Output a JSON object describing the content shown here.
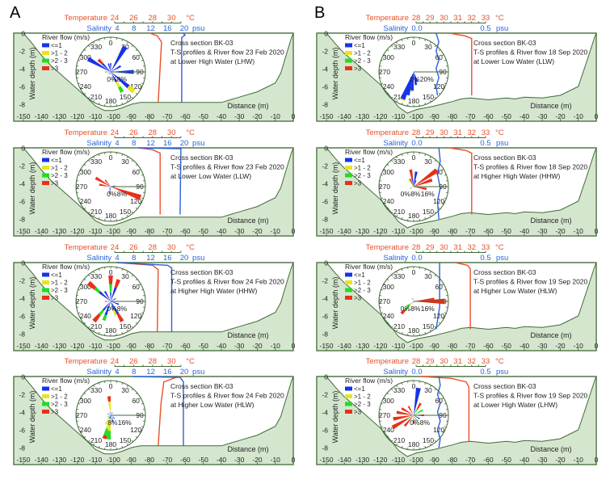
{
  "panel_labels": [
    "A",
    "B"
  ],
  "common": {
    "xlabel": "Distance (m)",
    "ylabel": "Water depth (m)",
    "xticks": [
      "-150",
      "-140",
      "-130",
      "-120",
      "-110",
      "-100",
      "-90",
      "-80",
      "-70",
      "-60",
      "-50",
      "-40",
      "-30",
      "-20",
      "-10",
      "0"
    ],
    "yticks": [
      "0",
      "-2",
      "-4",
      "-6",
      "-8"
    ],
    "temperature_label": "Temperature",
    "temperature_unit": "°C",
    "salinity_label": "Salinity",
    "salinity_unit": "psu",
    "legend": {
      "title": "River flow (m/s)",
      "entries": [
        "<=1",
        ">1 - 2",
        ">2 - 3",
        ">3"
      ]
    },
    "rose_directions": [
      "0",
      "30",
      "60",
      "90",
      "120",
      "150",
      "180",
      "210",
      "240",
      "270",
      "300",
      "330"
    ]
  },
  "colors": {
    "frame": "#3f6b35",
    "seabed_fill": "#d5e6cf",
    "temperature": "#e8502a",
    "salinity": "#2b62d9",
    "flow_classes": [
      "#1733e8",
      "#e6e61e",
      "#22dd22",
      "#e8301a"
    ]
  },
  "chart_data": [
    {
      "type": "profile+windrose",
      "column": "A",
      "title": [
        "Cross section BK-03",
        "T-S profiles & River flow 23 Feb 2020",
        "at Lower High Water (LHW)"
      ],
      "temperature_ticks": [
        "24",
        "26",
        "28",
        "30"
      ],
      "temperature_range": [
        24,
        31
      ],
      "salinity_ticks": [
        "4",
        "8",
        "12",
        "16",
        "20"
      ],
      "temperature_profile": [
        [
          0,
          27.7
        ],
        [
          -0.3,
          28.5
        ],
        [
          -1,
          28.95
        ],
        [
          -7.8,
          28.6
        ]
      ],
      "salinity_profile": [
        [
          0,
          19.7
        ],
        [
          -0.2,
          20.2
        ],
        [
          -0.5,
          19.4
        ],
        [
          -7.8,
          19.4
        ]
      ],
      "rose_max_pct": 12,
      "rose_pct_labels": [
        {
          "pct": 0,
          "label": "0%"
        },
        {
          "pct": 8,
          "label": "8%"
        }
      ],
      "petals": [
        [
          30,
          10,
          0,
          0,
          0
        ],
        [
          300,
          9,
          0,
          0,
          0
        ],
        [
          315,
          4,
          0,
          0,
          2
        ],
        [
          90,
          8,
          0,
          0,
          0
        ],
        [
          60,
          4,
          0,
          0,
          0
        ],
        [
          130,
          8,
          2.5,
          0,
          0
        ],
        [
          150,
          4,
          2,
          2,
          0
        ],
        [
          0,
          3,
          0,
          0,
          0
        ],
        [
          345,
          3,
          0,
          0,
          0
        ],
        [
          270,
          1,
          0,
          1,
          0
        ],
        [
          230,
          1,
          0,
          0,
          0
        ],
        [
          200,
          1,
          0,
          0,
          0
        ]
      ]
    },
    {
      "type": "profile+windrose",
      "column": "A",
      "title": [
        "Cross section BK-03",
        "T-S profiles & River flow 23 Feb 2020",
        "at Lower Low Water (LLW)"
      ],
      "temperature_ticks": [
        "24",
        "26",
        "28",
        "30"
      ],
      "temperature_range": [
        24,
        31
      ],
      "salinity_ticks": [
        "4",
        "8",
        "12",
        "16",
        "20"
      ],
      "temperature_profile": [
        [
          0,
          26.5
        ],
        [
          -0.2,
          28
        ],
        [
          -0.6,
          28.8
        ],
        [
          -7.5,
          28.8
        ]
      ],
      "salinity_profile": [
        [
          0,
          9
        ],
        [
          -0.1,
          19.2
        ],
        [
          -7.5,
          19.0
        ]
      ],
      "rose_max_pct": 12,
      "rose_pct_labels": [
        {
          "pct": 0,
          "label": "0%"
        },
        {
          "pct": 8,
          "label": "8%"
        }
      ],
      "petals": [
        [
          110,
          1,
          0,
          0,
          10
        ],
        [
          300,
          1,
          0,
          0,
          5
        ],
        [
          320,
          0,
          0,
          0,
          3
        ],
        [
          280,
          1,
          0,
          0,
          3
        ],
        [
          80,
          1.5,
          0,
          0,
          0
        ],
        [
          190,
          2.5,
          0,
          0,
          0
        ],
        [
          210,
          1,
          0,
          0,
          0
        ],
        [
          240,
          0,
          1,
          0,
          0
        ]
      ]
    },
    {
      "type": "profile+windrose",
      "column": "A",
      "title": [
        "Cross section BK-03",
        "T-S profiles & River flow 24 Feb 2020",
        "at Higher High Water (HHW)"
      ],
      "temperature_ticks": [
        "24",
        "26",
        "28",
        "30"
      ],
      "temperature_range": [
        24,
        31
      ],
      "salinity_ticks": [
        "4",
        "8",
        "12",
        "16",
        "20"
      ],
      "temperature_profile": [
        [
          0,
          24.3
        ],
        [
          -0.3,
          28.0
        ],
        [
          -0.8,
          28.6
        ],
        [
          -7.8,
          28.5
        ]
      ],
      "salinity_profile": [
        [
          0,
          4
        ],
        [
          -0.3,
          16
        ],
        [
          -0.6,
          17
        ],
        [
          -7.8,
          17
        ]
      ],
      "rose_max_pct": 12,
      "rose_pct_labels": [
        {
          "pct": 0,
          "label": "0%"
        },
        {
          "pct": 8,
          "label": "8%"
        }
      ],
      "petals": [
        [
          0,
          3,
          0,
          3,
          3
        ],
        [
          20,
          5,
          0,
          0,
          3
        ],
        [
          310,
          5,
          0,
          2,
          3
        ],
        [
          330,
          4,
          0,
          0,
          0
        ],
        [
          220,
          4,
          0,
          2,
          3
        ],
        [
          200,
          5,
          0,
          2,
          0
        ],
        [
          150,
          5,
          0,
          0,
          3
        ],
        [
          160,
          3,
          2,
          0,
          0
        ],
        [
          110,
          3,
          0,
          0,
          0
        ],
        [
          270,
          1,
          0,
          0,
          1
        ],
        [
          60,
          2,
          0,
          0,
          0
        ]
      ]
    },
    {
      "type": "profile+windrose",
      "column": "A",
      "title": [
        "Cross section BK-03",
        "T-S profiles & River flow 24 Feb 2020",
        "at Higher Low Water (HLW)"
      ],
      "temperature_ticks": [
        "24",
        "26",
        "28",
        "30"
      ],
      "temperature_range": [
        24,
        31
      ],
      "salinity_ticks": [
        "4",
        "8",
        "12",
        "16",
        "20"
      ],
      "temperature_profile": [
        [
          -7.8,
          28.6
        ],
        [
          -3,
          28.9
        ],
        [
          -0.6,
          29.2
        ],
        [
          -0.1,
          30.5
        ],
        [
          0,
          31.2
        ]
      ],
      "salinity_profile": [
        [
          0,
          7.7
        ],
        [
          -0.1,
          19
        ],
        [
          -0.6,
          19.8
        ],
        [
          -7.8,
          19.8
        ]
      ],
      "rose_max_pct": 20,
      "rose_pct_labels": [
        {
          "pct": 8,
          "label": "8%"
        },
        {
          "pct": 16,
          "label": "16%"
        }
      ],
      "petals": [
        [
          355,
          2,
          6,
          0,
          3
        ],
        [
          195,
          2,
          6,
          4,
          2
        ],
        [
          185,
          2,
          7,
          5,
          0
        ],
        [
          210,
          2,
          4,
          0,
          0
        ],
        [
          160,
          4,
          0,
          0,
          0
        ],
        [
          130,
          3,
          0,
          0,
          0
        ],
        [
          30,
          2,
          0,
          0,
          0
        ],
        [
          300,
          2,
          0,
          0,
          0
        ],
        [
          240,
          1,
          0,
          1,
          0
        ]
      ]
    },
    {
      "type": "profile+windrose",
      "column": "B",
      "title": [
        "Cross section BK-03",
        "T-S profiles & River flow 18 Sep 2020",
        "at Lower Low Water (LLW)"
      ],
      "temperature_ticks": [
        "28",
        "29",
        "30",
        "31",
        "32",
        "33"
      ],
      "temperature_range": [
        28,
        33
      ],
      "salinity_ticks": [
        "0.0",
        "0.5"
      ],
      "temperature_profile": [
        [
          0,
          30.4
        ],
        [
          -0.3,
          31.5
        ],
        [
          -0.6,
          32
        ],
        [
          -7,
          32
        ]
      ],
      "salinity_profile": [
        [
          0,
          0.14
        ],
        [
          -1,
          0.16
        ],
        [
          -2,
          0.14
        ],
        [
          -3,
          0.16
        ],
        [
          -4,
          0.14
        ],
        [
          -5,
          0.16
        ],
        [
          -6,
          0.14
        ],
        [
          -7,
          0.15
        ]
      ],
      "rose_max_pct": 26,
      "rose_pct_labels": [
        {
          "pct": 0,
          "label": "0%"
        },
        {
          "pct": 20,
          "label": "20%"
        }
      ],
      "petals": [
        [
          202,
          22,
          1,
          0,
          0
        ],
        [
          195,
          18,
          0,
          0,
          0
        ],
        [
          185,
          14,
          1,
          0,
          0
        ],
        [
          170,
          10,
          0,
          0,
          0
        ],
        [
          160,
          8,
          0,
          0,
          0
        ]
      ]
    },
    {
      "type": "profile+windrose",
      "column": "B",
      "title": [
        "Cross section BK-03",
        "T-S profiles & River flow 18 Sep 2020",
        "at Higher High Water (HHW)"
      ],
      "temperature_ticks": [
        "28",
        "29",
        "30",
        "31",
        "32",
        "33"
      ],
      "temperature_range": [
        28,
        33
      ],
      "salinity_ticks": [
        "0.0",
        "0.5"
      ],
      "temperature_profile": [
        [
          0,
          30.4
        ],
        [
          -0.3,
          31.6
        ],
        [
          -0.6,
          32
        ],
        [
          -7.5,
          32
        ]
      ],
      "salinity_profile": [
        [
          0,
          0.16
        ],
        [
          -1.5,
          0.17
        ],
        [
          -3,
          0.15
        ],
        [
          -4.5,
          0.17
        ],
        [
          -6,
          0.15
        ],
        [
          -8,
          0.16
        ]
      ],
      "rose_max_pct": 16,
      "rose_pct_labels": [
        {
          "pct": 0,
          "label": "0%"
        },
        {
          "pct": 8,
          "label": "8%"
        },
        {
          "pct": 16,
          "label": "16%"
        }
      ],
      "petals": [
        [
          55,
          0,
          0,
          0,
          13
        ],
        [
          70,
          0,
          0,
          0,
          9
        ],
        [
          10,
          7,
          0,
          0,
          0
        ],
        [
          350,
          4,
          0,
          0,
          4
        ],
        [
          335,
          1,
          0,
          0,
          3
        ],
        [
          325,
          1,
          3,
          0,
          0
        ],
        [
          100,
          0,
          0,
          0,
          6
        ],
        [
          240,
          1,
          0,
          1,
          0
        ],
        [
          20,
          3,
          0,
          0,
          0
        ]
      ]
    },
    {
      "type": "profile+windrose",
      "column": "B",
      "title": [
        "Cross section BK-03",
        "T-S profiles & River flow 19 Sep 2020",
        "at Higher Low Water (HLW)"
      ],
      "temperature_ticks": [
        "28",
        "29",
        "30",
        "31",
        "32",
        "33"
      ],
      "temperature_range": [
        28,
        33
      ],
      "salinity_ticks": [
        "0.0",
        "0.5"
      ],
      "temperature_profile": [
        [
          0,
          30.8
        ],
        [
          -0.3,
          31.7
        ],
        [
          -0.7,
          31.9
        ],
        [
          -7.5,
          31.9
        ]
      ],
      "salinity_profile": [
        [
          0,
          0.165
        ],
        [
          -3,
          0.165
        ],
        [
          -5,
          0.165
        ],
        [
          -6.5,
          0.15
        ],
        [
          -7.5,
          0.14
        ]
      ],
      "rose_max_pct": 20,
      "rose_pct_labels": [
        {
          "pct": 0,
          "label": "0%"
        },
        {
          "pct": 8,
          "label": "8%"
        },
        {
          "pct": 16,
          "label": "16%"
        }
      ],
      "petals": [
        [
          90,
          0,
          0,
          0,
          18
        ],
        [
          85,
          0,
          0,
          0,
          12
        ],
        [
          225,
          1,
          2,
          4,
          3
        ],
        [
          235,
          1,
          2,
          2,
          0
        ],
        [
          340,
          1,
          0,
          0,
          1
        ],
        [
          180,
          1,
          0,
          0,
          0
        ]
      ]
    },
    {
      "type": "profile+windrose",
      "column": "B",
      "title": [
        "Cross section BK-03",
        "T-S profiles & River flow 19 Sep 2020",
        "at Lower High Water (LHW)"
      ],
      "temperature_ticks": [
        "28",
        "29",
        "30",
        "31",
        "32",
        "33"
      ],
      "temperature_range": [
        28,
        33
      ],
      "salinity_ticks": [
        "0.0",
        "0.5"
      ],
      "temperature_profile": [
        [
          0,
          28.4
        ],
        [
          -0.2,
          30.5
        ],
        [
          -0.6,
          31.6
        ],
        [
          -1.2,
          31.8
        ],
        [
          -7.3,
          31.8
        ]
      ],
      "salinity_profile": [
        [
          0,
          0.16
        ],
        [
          -1,
          0.17
        ],
        [
          -2,
          0.15
        ],
        [
          -3,
          0.17
        ],
        [
          -4,
          0.15
        ],
        [
          -5,
          0.17
        ],
        [
          -6,
          0.15
        ],
        [
          -7,
          0.17
        ],
        [
          -8,
          0.16
        ]
      ],
      "rose_max_pct": 10,
      "rose_pct_labels": [
        {
          "pct": 0,
          "label": "0%"
        },
        {
          "pct": 8,
          "label": "8%"
        }
      ],
      "petals": [
        [
          10,
          8,
          0,
          0,
          0
        ],
        [
          260,
          0,
          0,
          0,
          6
        ],
        [
          240,
          0,
          0,
          2,
          5
        ],
        [
          220,
          0,
          0,
          0,
          4
        ],
        [
          300,
          0,
          0,
          0,
          4
        ],
        [
          330,
          0,
          0,
          0,
          3
        ],
        [
          30,
          0,
          0,
          2,
          2
        ],
        [
          60,
          0,
          0,
          3,
          0
        ],
        [
          90,
          1.5,
          0,
          0,
          1.5
        ],
        [
          180,
          0,
          0,
          0,
          2.5
        ],
        [
          150,
          0,
          0,
          2,
          0
        ],
        [
          120,
          2,
          0,
          0,
          0
        ],
        [
          280,
          1,
          0,
          0,
          4
        ]
      ]
    }
  ],
  "bathymetry": {
    "A": [
      [
        -150,
        0
      ],
      [
        -145,
        -1.2
      ],
      [
        -140,
        -2.5
      ],
      [
        -135,
        -3.6
      ],
      [
        -130,
        -4.5
      ],
      [
        -125,
        -5.4
      ],
      [
        -120,
        -6.3
      ],
      [
        -115,
        -7.2
      ],
      [
        -110,
        -8.2
      ],
      [
        -105,
        -8.7
      ],
      [
        -100,
        -8.7
      ],
      [
        -95,
        -8.4
      ],
      [
        -90,
        -8.0
      ],
      [
        -85,
        -7.8
      ],
      [
        -70,
        -7.8
      ],
      [
        -60,
        -7.8
      ],
      [
        -50,
        -7.8
      ],
      [
        -40,
        -7.8
      ],
      [
        -35,
        -7.5
      ],
      [
        -30,
        -7.2
      ],
      [
        -20,
        -6.6
      ],
      [
        -10,
        -5.6
      ],
      [
        -7,
        -4.5
      ],
      [
        -4,
        -2.5
      ],
      [
        -1,
        -0.5
      ],
      [
        0,
        0
      ]
    ],
    "B": [
      [
        -150,
        0
      ],
      [
        -145,
        -1.2
      ],
      [
        -140,
        -2.3
      ],
      [
        -130,
        -4
      ],
      [
        -120,
        -5.8
      ],
      [
        -115,
        -7
      ],
      [
        -110,
        -8.3
      ],
      [
        -105,
        -9.0
      ],
      [
        -100,
        -8.6
      ],
      [
        -90,
        -8.2
      ],
      [
        -80,
        -7.7
      ],
      [
        -75,
        -7.4
      ],
      [
        -70,
        -7.3
      ],
      [
        -60,
        -7.5
      ],
      [
        -50,
        -7.3
      ],
      [
        -45,
        -7.4
      ],
      [
        -40,
        -7.2
      ],
      [
        -30,
        -7.3
      ],
      [
        -20,
        -7.0
      ],
      [
        -10,
        -6.0
      ],
      [
        -5,
        -3.0
      ],
      [
        -1,
        -0.5
      ],
      [
        0,
        0
      ]
    ]
  }
}
